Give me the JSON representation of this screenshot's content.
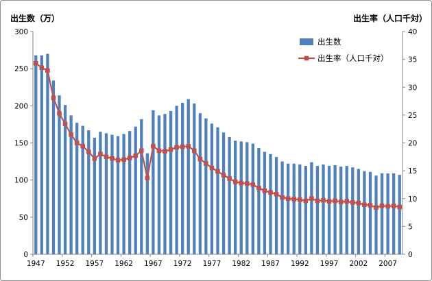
{
  "chart_data": {
    "type": "bar",
    "title": "",
    "ylabel": "出生数（万）",
    "y2label": "出生率（人口千対）",
    "ylim": [
      0,
      300
    ],
    "y2lim": [
      0,
      40
    ],
    "yticks": [
      "0",
      "50",
      "100",
      "150",
      "200",
      "250",
      "300"
    ],
    "y2ticks": [
      "0",
      "5",
      "10",
      "15",
      "20",
      "25",
      "30",
      "35",
      "40"
    ],
    "xtick_labels": [
      "1947",
      "1952",
      "1957",
      "1962",
      "1967",
      "1972",
      "1977",
      "1982",
      "1987",
      "1992",
      "1997",
      "2002",
      "2007"
    ],
    "legend_position": "top-right",
    "categories": [
      1947,
      1948,
      1949,
      1950,
      1951,
      1952,
      1953,
      1954,
      1955,
      1956,
      1957,
      1958,
      1959,
      1960,
      1961,
      1962,
      1963,
      1964,
      1965,
      1966,
      1967,
      1968,
      1969,
      1970,
      1971,
      1972,
      1973,
      1974,
      1975,
      1976,
      1977,
      1978,
      1979,
      1980,
      1981,
      1982,
      1983,
      1984,
      1985,
      1986,
      1987,
      1988,
      1989,
      1990,
      1991,
      1992,
      1993,
      1994,
      1995,
      1996,
      1997,
      1998,
      1999,
      2000,
      2001,
      2002,
      2003,
      2004,
      2005,
      2006,
      2007,
      2008,
      2009
    ],
    "series": [
      {
        "name": "出生数",
        "type": "bar",
        "axis": "left",
        "color": "#4f81bd",
        "values": [
          268,
          268,
          270,
          234,
          214,
          201,
          187,
          177,
          173,
          167,
          157,
          165,
          163,
          161,
          159,
          162,
          166,
          172,
          182,
          136,
          194,
          187,
          189,
          193,
          200,
          204,
          209,
          203,
          190,
          183,
          176,
          171,
          164,
          158,
          153,
          152,
          151,
          149,
          143,
          138,
          135,
          131,
          125,
          122,
          122,
          121,
          119,
          124,
          119,
          121,
          119,
          120,
          118,
          119,
          117,
          115,
          112,
          111,
          106,
          109,
          109,
          109,
          107
        ]
      },
      {
        "name": "出生率（人口千対）",
        "type": "line",
        "axis": "right",
        "color": "#c0504d",
        "values": [
          34.3,
          33.5,
          33.0,
          28.1,
          25.3,
          23.4,
          21.5,
          20.0,
          19.4,
          18.4,
          17.2,
          18.0,
          17.5,
          17.2,
          16.9,
          17.0,
          17.3,
          17.7,
          18.6,
          13.7,
          19.4,
          18.6,
          18.5,
          18.8,
          19.2,
          19.3,
          19.4,
          18.6,
          17.1,
          16.3,
          15.5,
          14.9,
          14.2,
          13.6,
          13.0,
          12.8,
          12.7,
          12.5,
          11.9,
          11.4,
          11.1,
          10.8,
          10.2,
          10.0,
          9.9,
          9.8,
          9.6,
          10.0,
          9.6,
          9.7,
          9.5,
          9.6,
          9.4,
          9.5,
          9.3,
          9.2,
          8.9,
          8.8,
          8.4,
          8.7,
          8.6,
          8.7,
          8.5
        ]
      }
    ]
  }
}
